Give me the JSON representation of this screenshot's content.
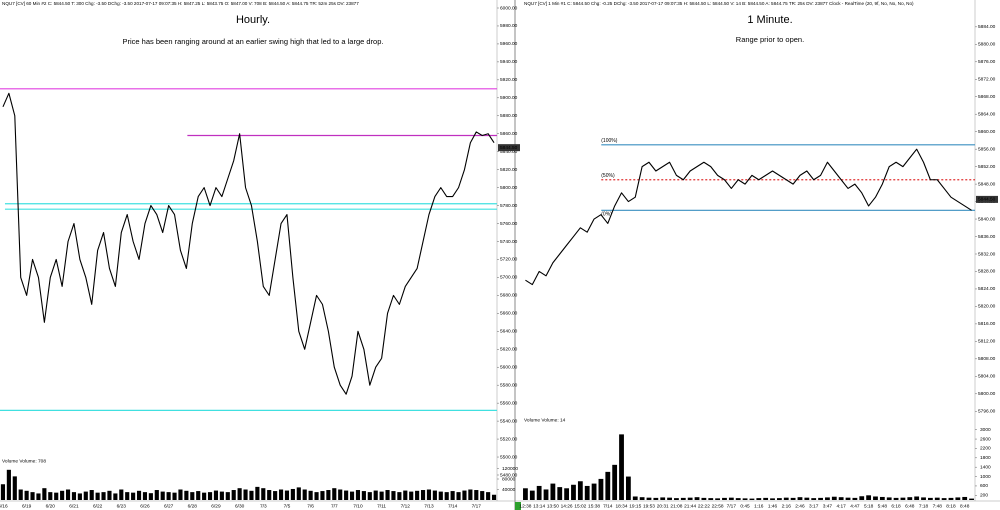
{
  "chart_data": [
    {
      "type": "line",
      "header": "NQU7 [CV] 60 Min  #2  C: 5844.50  T: 300  Chg: -3.50  DChg: -3.50  2017-07-17 09:07:35  H: 5847.25  L: 5843.75  O: 5847.00  V: 708  B: 5844.50  A: 5844.75  TR: 52m 25s  DV: 23877",
      "title": "Hourly.",
      "subtitle": "Price has been ranging around at an earlier swing high that led to a large drop.",
      "categories": [
        "6/16",
        null,
        null,
        null,
        "6/19",
        null,
        null,
        null,
        "6/20",
        null,
        null,
        null,
        "6/21",
        null,
        null,
        null,
        "6/22",
        null,
        null,
        null,
        "6/23",
        null,
        null,
        null,
        "6/26",
        null,
        null,
        null,
        "6/27",
        null,
        null,
        null,
        "6/28",
        null,
        null,
        null,
        "6/29",
        null,
        null,
        null,
        "6/30",
        null,
        null,
        null,
        "7/3",
        null,
        null,
        null,
        "7/5",
        null,
        null,
        null,
        "7/6",
        null,
        null,
        null,
        "7/7",
        null,
        null,
        null,
        "7/10",
        null,
        null,
        null,
        "7/11",
        null,
        null,
        null,
        "7/12",
        null,
        null,
        null,
        "7/13",
        null,
        null,
        null,
        "7/14",
        null,
        null,
        null,
        "7/17",
        null,
        null,
        null
      ],
      "values": [
        5890,
        5905,
        5880,
        5700,
        5680,
        5720,
        5700,
        5650,
        5700,
        5720,
        5690,
        5740,
        5760,
        5720,
        5700,
        5670,
        5730,
        5750,
        5710,
        5690,
        5750,
        5770,
        5740,
        5720,
        5760,
        5780,
        5770,
        5750,
        5780,
        5770,
        5730,
        5710,
        5760,
        5790,
        5800,
        5780,
        5800,
        5790,
        5810,
        5830,
        5860,
        5800,
        5780,
        5740,
        5690,
        5680,
        5720,
        5760,
        5770,
        5700,
        5640,
        5620,
        5650,
        5680,
        5670,
        5640,
        5600,
        5580,
        5570,
        5590,
        5640,
        5620,
        5580,
        5600,
        5610,
        5660,
        5680,
        5670,
        5690,
        5700,
        5710,
        5740,
        5770,
        5790,
        5800,
        5790,
        5790,
        5800,
        5820,
        5850,
        5862,
        5858,
        5860,
        5850
      ],
      "color": "#000000",
      "ylim": [
        5480,
        6000
      ],
      "yticks": [
        {
          "value": 6000,
          "label": "6000.00"
        },
        {
          "value": 5980,
          "label": "5980.00"
        },
        {
          "value": 5960,
          "label": "5960.00"
        },
        {
          "value": 5940,
          "label": "5940.00"
        },
        {
          "value": 5920,
          "label": "5920.00"
        },
        {
          "value": 5900,
          "label": "5900.00"
        },
        {
          "value": 5880,
          "label": "5880.00"
        },
        {
          "value": 5860,
          "label": "5860.00"
        },
        {
          "value": 5840,
          "label": "5840.00"
        },
        {
          "value": 5820,
          "label": "5820.00"
        },
        {
          "value": 5800,
          "label": "5800.00"
        },
        {
          "value": 5780,
          "label": "5780.00"
        },
        {
          "value": 5760,
          "label": "5760.00"
        },
        {
          "value": 5740,
          "label": "5740.00"
        },
        {
          "value": 5720,
          "label": "5720.00"
        },
        {
          "value": 5700,
          "label": "5700.00"
        },
        {
          "value": 5680,
          "label": "5680.00"
        },
        {
          "value": 5660,
          "label": "5660.00"
        },
        {
          "value": 5640,
          "label": "5640.00"
        },
        {
          "value": 5620,
          "label": "5620.00"
        },
        {
          "value": 5600,
          "label": "5600.00"
        },
        {
          "value": 5580,
          "label": "5580.00"
        },
        {
          "value": 5560,
          "label": "5560.00"
        },
        {
          "value": 5540,
          "label": "5540.00"
        },
        {
          "value": 5520,
          "label": "5520.00"
        },
        {
          "value": 5500,
          "label": "5500.00"
        },
        {
          "value": 5480,
          "label": "5480.00"
        }
      ],
      "levels": [
        {
          "value": 5910,
          "color": "#e040e0"
        },
        {
          "value": 5858,
          "color": "#c030c0"
        },
        {
          "value": 5782,
          "color": "#40e0e0"
        },
        {
          "value": 5776,
          "color": "#40e0e0"
        },
        {
          "value": 5552,
          "color": "#40e0e0"
        }
      ],
      "last": 5844.5,
      "last_label": "5844.50",
      "volume_label": "Volume  Volume: 708",
      "volume": [
        60000,
        115000,
        90000,
        40000,
        35000,
        30000,
        25000,
        45000,
        30000,
        28000,
        35000,
        40000,
        30000,
        25000,
        32000,
        38000,
        28000,
        30000,
        35000,
        25000,
        40000,
        30000,
        28000,
        35000,
        30000,
        26000,
        38000,
        32000,
        30000,
        28000,
        40000,
        35000,
        30000,
        34000,
        28000,
        30000,
        36000,
        32000,
        30000,
        38000,
        45000,
        40000,
        35000,
        50000,
        45000,
        38000,
        34000,
        40000,
        36000,
        42000,
        48000,
        40000,
        35000,
        30000,
        34000,
        38000,
        45000,
        40000,
        36000,
        32000,
        38000,
        34000,
        30000,
        36000,
        32000,
        38000,
        34000,
        30000,
        36000,
        32000,
        35000,
        38000,
        40000,
        36000,
        32000,
        30000,
        34000,
        30000,
        36000,
        40000,
        38000,
        34000,
        30000,
        20000
      ],
      "vlim": [
        0,
        160000
      ],
      "vticks": [
        120000,
        80000,
        40000
      ]
    },
    {
      "type": "line",
      "header": "NQU7 [CV] 1 Min  #1  C: 5844.50  Chg: -0.25  DChg: -3.50  2017-07-17 09:07:35  H: 5844.50  L: 5844.50  V: 14  B: 5844.50  A: 5844.75  TR: 25s  DV: 23877  Clock - RealTime  (20, 9f, No, No, No, No)",
      "title": "1 Minute.",
      "subtitle": "Range prior to open.",
      "categories": [
        "12:38",
        null,
        "13:14",
        null,
        "13:50",
        null,
        "14:26",
        null,
        "15:02",
        null,
        "15:38",
        null,
        "7/14",
        null,
        "18:34",
        null,
        "19:15",
        null,
        "19:53",
        null,
        "20:31",
        null,
        "21:08",
        null,
        "21:44",
        null,
        "22:22",
        null,
        "22:58",
        null,
        "7/17",
        null,
        "0:45",
        null,
        "1:16",
        null,
        "1:46",
        null,
        "2:16",
        null,
        "2:46",
        null,
        "3:17",
        null,
        "3:47",
        null,
        "4:17",
        null,
        "4:47",
        null,
        "5:18",
        null,
        "5:48",
        null,
        "6:18",
        null,
        "6:48",
        null,
        "7:18",
        null,
        "7:48",
        null,
        "8:18",
        null,
        "8:48",
        null
      ],
      "values": [
        5826,
        5825,
        5828,
        5827,
        5830,
        5832,
        5834,
        5836,
        5838,
        5837,
        5840,
        5841,
        5839,
        5843,
        5846,
        5844,
        5845,
        5852,
        5853,
        5851,
        5852,
        5853,
        5850,
        5849,
        5851,
        5852,
        5853,
        5852,
        5850,
        5849,
        5847,
        5849,
        5848,
        5850,
        5849,
        5850,
        5851,
        5850,
        5849,
        5848,
        5850,
        5851,
        5849,
        5850,
        5853,
        5851,
        5849,
        5847,
        5848,
        5846,
        5843,
        5845,
        5848,
        5852,
        5853,
        5852,
        5854,
        5856,
        5853,
        5849,
        5849,
        5847,
        5845,
        5844,
        5843,
        5842
      ],
      "color": "#000000",
      "ylim": [
        5794,
        5889
      ],
      "yticks": [
        {
          "value": 5884,
          "label": "5884.00"
        },
        {
          "value": 5880,
          "label": "5880.00"
        },
        {
          "value": 5876,
          "label": "5876.00"
        },
        {
          "value": 5872,
          "label": "5872.00"
        },
        {
          "value": 5868,
          "label": "5868.00"
        },
        {
          "value": 5864,
          "label": "5864.00"
        },
        {
          "value": 5860,
          "label": "5860.00"
        },
        {
          "value": 5856,
          "label": "5856.00"
        },
        {
          "value": 5852,
          "label": "5852.00"
        },
        {
          "value": 5848,
          "label": "5848.00"
        },
        {
          "value": 5844,
          "label": "5844.00"
        },
        {
          "value": 5840,
          "label": "5840.00"
        },
        {
          "value": 5836,
          "label": "5836.00"
        },
        {
          "value": 5832,
          "label": "5832.00"
        },
        {
          "value": 5828,
          "label": "5828.00"
        },
        {
          "value": 5824,
          "label": "5824.00"
        },
        {
          "value": 5820,
          "label": "5820.00"
        },
        {
          "value": 5816,
          "label": "5816.00"
        },
        {
          "value": 5812,
          "label": "5812.00"
        },
        {
          "value": 5808,
          "label": "5808.00"
        },
        {
          "value": 5804,
          "label": "5804.00"
        },
        {
          "value": 5800,
          "label": "5800.00"
        },
        {
          "value": 5796,
          "label": "5796.00"
        }
      ],
      "levels": [
        {
          "value": 5857,
          "color": "#3a8fc0",
          "label": "(100%)"
        },
        {
          "value": 5849,
          "color": "#e03030",
          "label": "(50%)",
          "dashed": true
        },
        {
          "value": 5842,
          "color": "#3a8fc0",
          "label": "(0%)"
        }
      ],
      "last": 5844.5,
      "last_label": "5844.50",
      "volume_label": "Volume  Volume: 14",
      "volume": [
        500,
        400,
        600,
        450,
        700,
        550,
        500,
        650,
        800,
        600,
        700,
        900,
        1200,
        1500,
        2800,
        1000,
        150,
        120,
        100,
        90,
        110,
        100,
        80,
        90,
        100,
        120,
        90,
        80,
        70,
        90,
        100,
        80,
        70,
        60,
        80,
        90,
        70,
        80,
        100,
        90,
        120,
        100,
        80,
        90,
        110,
        140,
        120,
        100,
        90,
        160,
        200,
        150,
        130,
        110,
        90,
        100,
        120,
        150,
        110,
        90,
        100,
        80,
        90,
        110,
        130,
        60
      ],
      "vlim": [
        0,
        3200
      ],
      "vticks": [
        3000,
        2600,
        2200,
        1800,
        1400,
        1000,
        600,
        200
      ]
    }
  ]
}
